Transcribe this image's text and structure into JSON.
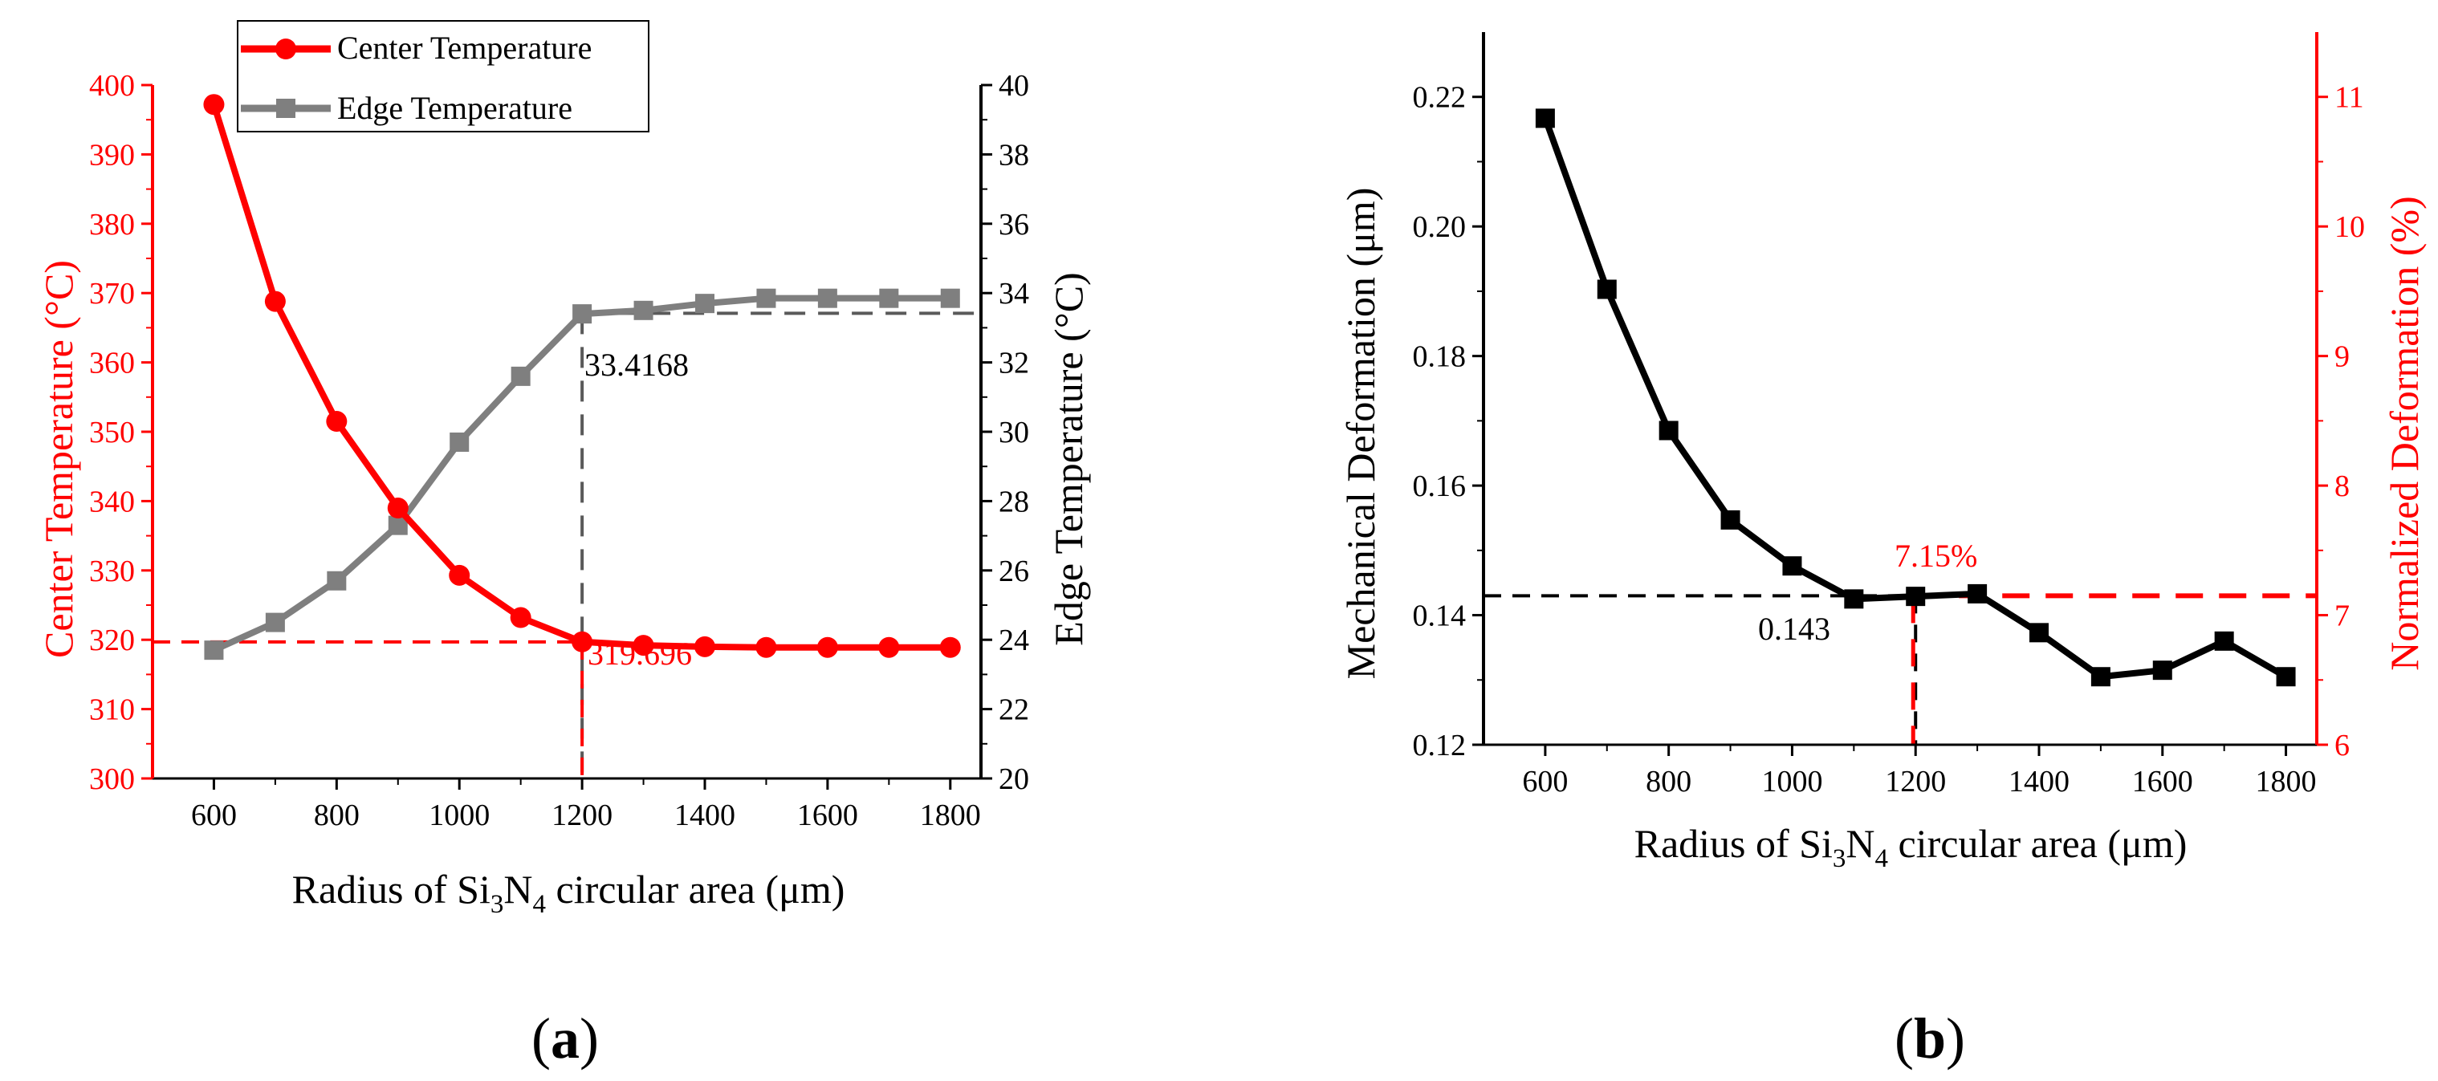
{
  "colors": {
    "red": "#ff0000",
    "gray": "#7f7f7f",
    "black": "#000000",
    "gray_dash": "#5a5a5a"
  },
  "chart_data": [
    {
      "type": "line",
      "panel_label": "(a)",
      "xlabel": {
        "pre": "Radius of Si",
        "sub1": "3",
        "mid": "N",
        "sub2": "4",
        "post": " circular area (μm)"
      },
      "ylabel_left": "Center Temperature (°C)",
      "ylabel_right": "Edge Temperature (°C)",
      "xlim": [
        500,
        1850
      ],
      "ylim_left": [
        300,
        400
      ],
      "ylim_right": [
        20,
        40
      ],
      "x_ticks": [
        600,
        800,
        1000,
        1200,
        1400,
        1600,
        1800
      ],
      "y_ticks_left": [
        300,
        310,
        320,
        330,
        340,
        350,
        360,
        370,
        380,
        390,
        400
      ],
      "y_ticks_right": [
        20,
        22,
        24,
        26,
        28,
        30,
        32,
        34,
        36,
        38,
        40
      ],
      "x": [
        600,
        700,
        800,
        900,
        1000,
        1100,
        1200,
        1300,
        1400,
        1500,
        1600,
        1700,
        1800
      ],
      "series": [
        {
          "name": "Center Temperature",
          "axis": "left",
          "marker": "circle",
          "values": [
            397.2,
            368.8,
            351.5,
            339.0,
            329.3,
            323.2,
            319.7,
            319.2,
            319.0,
            318.9,
            318.9,
            318.9,
            318.9
          ]
        },
        {
          "name": "Edge Temperature",
          "axis": "right",
          "marker": "square",
          "values": [
            23.7,
            24.5,
            25.7,
            27.3,
            29.7,
            31.6,
            33.4,
            33.5,
            33.7,
            33.85,
            33.85,
            33.85,
            33.85
          ]
        }
      ],
      "annotations": [
        {
          "text": "33.4168",
          "color": "black"
        },
        {
          "text": "319.696",
          "color": "red"
        }
      ],
      "reference_lines": {
        "center_value": 319.696,
        "edge_value": 33.4168,
        "x": 1200
      }
    },
    {
      "type": "line",
      "panel_label": "(b)",
      "xlabel": {
        "pre": "Radius of Si",
        "sub1": "3",
        "mid": "N",
        "sub2": "4",
        "post": " circular area (μm)"
      },
      "ylabel_left": "Mechanical Deformation (μm)",
      "ylabel_right": "Normalized Deformation (%)",
      "xlim": [
        500,
        1850
      ],
      "ylim_left": [
        0.12,
        0.23
      ],
      "ylim_right": [
        6,
        11.5
      ],
      "x_ticks": [
        600,
        800,
        1000,
        1200,
        1400,
        1600,
        1800
      ],
      "y_ticks_left": [
        "0.12",
        "0.14",
        "0.16",
        "0.18",
        "0.20",
        "0.22"
      ],
      "y_ticks_right": [
        6,
        7,
        8,
        9,
        10,
        11
      ],
      "x": [
        600,
        700,
        800,
        900,
        1000,
        1100,
        1200,
        1300,
        1400,
        1500,
        1600,
        1700,
        1800
      ],
      "series": [
        {
          "name": "Mechanical Deformation",
          "axis": "left",
          "marker": "square",
          "values": [
            0.2167,
            0.1903,
            0.1685,
            0.1547,
            0.1476,
            0.1425,
            0.1429,
            0.1433,
            0.1373,
            0.1305,
            0.1315,
            0.136,
            0.1305
          ]
        }
      ],
      "annotations": [
        {
          "text": "0.143",
          "color": "black"
        },
        {
          "text": "7.15%",
          "color": "red"
        }
      ],
      "reference_lines": {
        "left_value": 0.143,
        "right_value": 7.15,
        "x": 1200
      }
    }
  ]
}
